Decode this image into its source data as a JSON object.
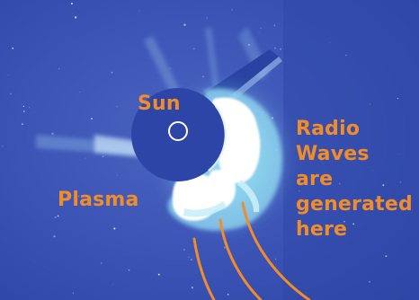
{
  "labels": {
    "sun": "Sun",
    "plasma": "Plasma",
    "radio_waves": [
      "Radio",
      "Waves",
      "are",
      "generated",
      "here"
    ]
  },
  "colors": {
    "sky": "#3a52b4",
    "occulter": "#2c45a6",
    "ejecta": "#ffffff",
    "halo": "#86d2ec",
    "annotation": "#f08c2a",
    "sun_marker": "#ffffff"
  }
}
